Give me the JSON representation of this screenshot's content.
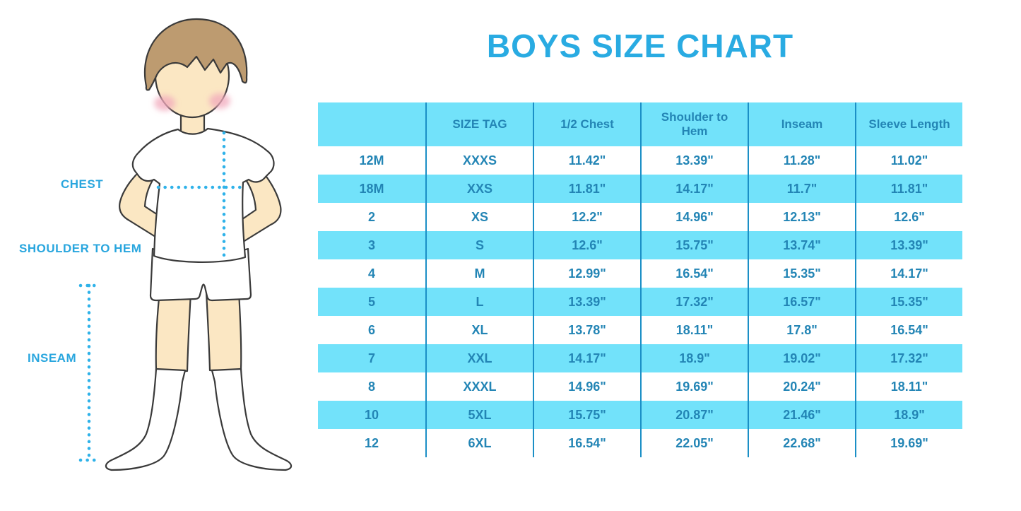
{
  "title": "BOYS SIZE CHART",
  "figure": {
    "description": "cartoon boy wearing white t-shirt, shorts and knee socks with measurement guide lines",
    "labels": {
      "chest": "CHEST",
      "shoulder_to_hem": "SHOULDER TO HEM",
      "inseam": "INSEAM"
    }
  },
  "colors": {
    "title_blue": "#29ABE2",
    "label_blue": "#29A6DE",
    "dotted_line": "#2FB2E9",
    "table_band": "#72E2FA",
    "table_text": "#2385B5",
    "table_divider": "#1B8FC6",
    "skin": "#FBE7C3",
    "hair": "#BD9B70",
    "cheek": "#F2A9BC"
  },
  "chart_data": {
    "type": "table",
    "title": "BOYS SIZE CHART",
    "columns": [
      "",
      "SIZE TAG",
      "1/2 Chest",
      "Shoulder to Hem",
      "Inseam",
      "Sleeve Length"
    ],
    "rows": [
      [
        "12M",
        "XXXS",
        "11.42\"",
        "13.39\"",
        "11.28\"",
        "11.02\""
      ],
      [
        "18M",
        "XXS",
        "11.81\"",
        "14.17\"",
        "11.7\"",
        "11.81\""
      ],
      [
        "2",
        "XS",
        "12.2\"",
        "14.96\"",
        "12.13\"",
        "12.6\""
      ],
      [
        "3",
        "S",
        "12.6\"",
        "15.75\"",
        "13.74\"",
        "13.39\""
      ],
      [
        "4",
        "M",
        "12.99\"",
        "16.54\"",
        "15.35\"",
        "14.17\""
      ],
      [
        "5",
        "L",
        "13.39\"",
        "17.32\"",
        "16.57\"",
        "15.35\""
      ],
      [
        "6",
        "XL",
        "13.78\"",
        "18.11\"",
        "17.8\"",
        "16.54\""
      ],
      [
        "7",
        "XXL",
        "14.17\"",
        "18.9\"",
        "19.02\"",
        "17.32\""
      ],
      [
        "8",
        "XXXL",
        "14.96\"",
        "19.69\"",
        "20.24\"",
        "18.11\""
      ],
      [
        "10",
        "5XL",
        "15.75\"",
        "20.87\"",
        "21.46\"",
        "18.9\""
      ],
      [
        "12",
        "6XL",
        "16.54\"",
        "22.05\"",
        "22.68\"",
        "19.69\""
      ]
    ],
    "units": "inches",
    "row_striping": "alternating white and light-cyan rows, starting with white; header row light-cyan",
    "layout": "vertical blue divider lines between the 6 columns; no outer border"
  }
}
